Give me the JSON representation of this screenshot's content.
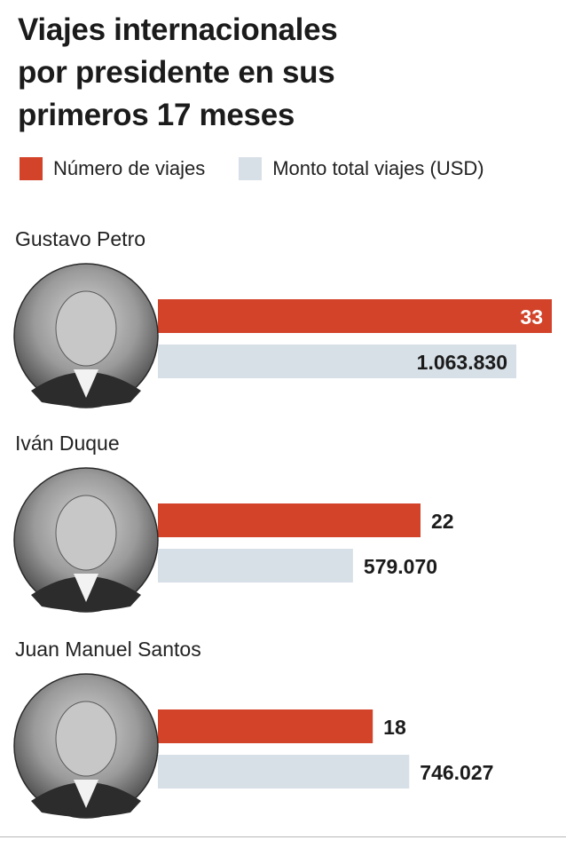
{
  "chart_data": {
    "type": "bar",
    "orientation": "horizontal",
    "title_lines": [
      "Viajes internacionales",
      "por presidente en sus",
      "primeros 17 meses"
    ],
    "categories": [
      "Gustavo Petro",
      "Iván Duque",
      "Juan Manuel Santos"
    ],
    "series": [
      {
        "name": "Número de viajes",
        "color": "#d2432a",
        "values": [
          33,
          22,
          18
        ],
        "labels": [
          "33",
          "22",
          "18"
        ],
        "max": 33
      },
      {
        "name": "Monto total viajes (USD)",
        "color": "#d8e0e7",
        "values": [
          1063830,
          579070,
          746027
        ],
        "labels": [
          "1.063.830",
          "579.070",
          "746.027"
        ],
        "max": 1063830
      }
    ],
    "legend_position": "top",
    "grid": false
  }
}
